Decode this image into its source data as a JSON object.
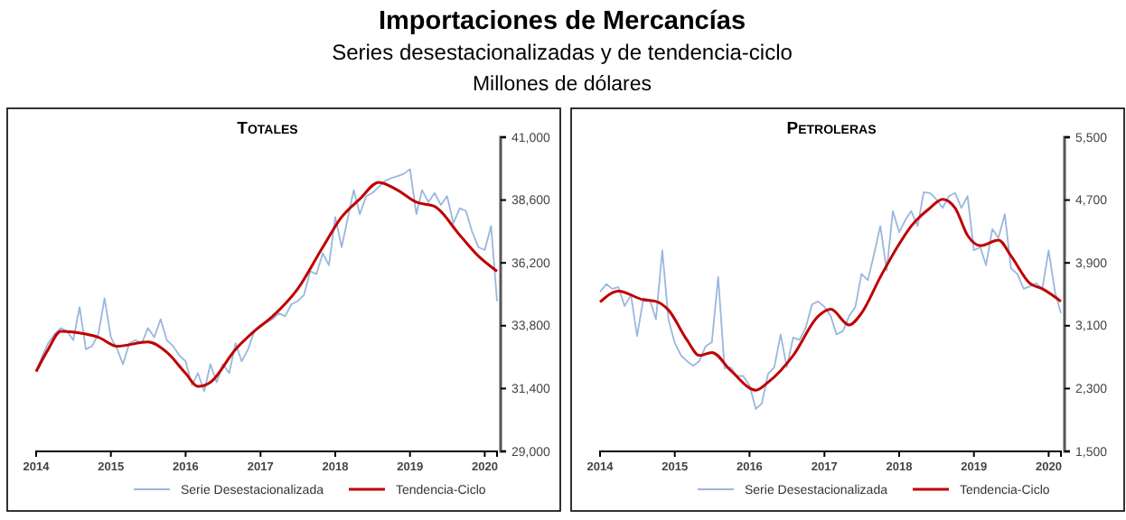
{
  "chart_data": [
    {
      "type": "line",
      "title": "Totales",
      "annotations": [
        "Importaciones de Mercancías",
        "Series desestacionalizadas y de tendencia-ciclo",
        "Millones de dólares"
      ],
      "x": [
        "2014-01",
        "2014-02",
        "2014-03",
        "2014-04",
        "2014-05",
        "2014-06",
        "2014-07",
        "2014-08",
        "2014-09",
        "2014-10",
        "2014-11",
        "2014-12",
        "2015-01",
        "2015-02",
        "2015-03",
        "2015-04",
        "2015-05",
        "2015-06",
        "2015-07",
        "2015-08",
        "2015-09",
        "2015-10",
        "2015-11",
        "2015-12",
        "2016-01",
        "2016-02",
        "2016-03",
        "2016-04",
        "2016-05",
        "2016-06",
        "2016-07",
        "2016-08",
        "2016-09",
        "2016-10",
        "2016-11",
        "2016-12",
        "2017-01",
        "2017-02",
        "2017-03",
        "2017-04",
        "2017-05",
        "2017-06",
        "2017-07",
        "2017-08",
        "2017-09",
        "2017-10",
        "2017-11",
        "2017-12",
        "2018-01",
        "2018-02",
        "2018-03",
        "2018-04",
        "2018-05",
        "2018-06",
        "2018-07",
        "2018-08",
        "2018-09",
        "2018-10",
        "2018-11",
        "2018-12",
        "2019-01",
        "2019-02",
        "2019-03",
        "2019-04",
        "2019-05",
        "2019-06",
        "2019-07",
        "2019-08",
        "2019-09",
        "2019-10",
        "2019-11",
        "2019-12",
        "2020-01",
        "2020-02",
        "2020-03"
      ],
      "series": [
        {
          "name": "Serie Desestacionalizada",
          "color": "#9ab7dd",
          "values": [
            32050,
            32670,
            33130,
            33480,
            33710,
            33590,
            33250,
            34510,
            32900,
            33020,
            33480,
            34850,
            33360,
            32900,
            32330,
            33130,
            33250,
            33130,
            33710,
            33360,
            34050,
            33250,
            33020,
            32670,
            32440,
            31530,
            31990,
            31300,
            32330,
            31640,
            32330,
            31990,
            33130,
            32440,
            32900,
            33590,
            33820,
            33930,
            34050,
            34280,
            34160,
            34620,
            34740,
            34970,
            35880,
            35770,
            36570,
            36110,
            37950,
            36800,
            37830,
            38980,
            38060,
            38750,
            38870,
            39100,
            39330,
            39440,
            39510,
            39600,
            39780,
            38060,
            38980,
            38520,
            38870,
            38410,
            38750,
            37720,
            38290,
            38180,
            37380,
            36800,
            36690,
            37610,
            34740
          ]
        },
        {
          "name": "Tendencia-Ciclo",
          "color": "#c00000",
          "x": [
            "2014-01",
            "2014-03",
            "2014-05",
            "2014-09",
            "2014-11",
            "2015-02",
            "2015-07",
            "2015-10",
            "2016-01",
            "2016-03",
            "2016-05",
            "2016-09",
            "2016-12",
            "2017-03",
            "2017-07",
            "2017-11",
            "2018-02",
            "2018-05",
            "2018-08",
            "2018-11",
            "2019-02",
            "2019-05",
            "2019-09",
            "2019-12",
            "2020-03"
          ],
          "values": [
            32050,
            32900,
            33590,
            33480,
            33360,
            33020,
            33180,
            32790,
            31980,
            31480,
            31640,
            32900,
            33590,
            34160,
            35200,
            36800,
            37950,
            38640,
            39280,
            38980,
            38520,
            38360,
            37260,
            36460,
            35880
          ]
        }
      ],
      "xlim": [
        "2014-01",
        "2020-03"
      ],
      "xticks": [
        {
          "value": "2014-01",
          "label": "2014"
        },
        {
          "value": "2015-01",
          "label": "2015"
        },
        {
          "value": "2016-01",
          "label": "2016"
        },
        {
          "value": "2017-01",
          "label": "2017"
        },
        {
          "value": "2018-01",
          "label": "2018"
        },
        {
          "value": "2019-01",
          "label": "2019"
        },
        {
          "value": "2020-01",
          "label": "2020"
        }
      ],
      "ylim": [
        29000,
        41000
      ],
      "yticks": [
        {
          "value": 29000,
          "label": "29,000"
        },
        {
          "value": 31400,
          "label": "31,400"
        },
        {
          "value": 33800,
          "label": "33,800"
        },
        {
          "value": 36200,
          "label": "36,200"
        },
        {
          "value": 38600,
          "label": "38,600"
        },
        {
          "value": 41000,
          "label": "41,000"
        }
      ],
      "legend": "bottom",
      "marker": "none",
      "line_style": "solid"
    },
    {
      "type": "line",
      "title": "Petroleras",
      "x": [
        "2014-01",
        "2014-02",
        "2014-03",
        "2014-04",
        "2014-05",
        "2014-06",
        "2014-07",
        "2014-08",
        "2014-09",
        "2014-10",
        "2014-11",
        "2014-12",
        "2015-01",
        "2015-02",
        "2015-03",
        "2015-04",
        "2015-05",
        "2015-06",
        "2015-07",
        "2015-08",
        "2015-09",
        "2015-10",
        "2015-11",
        "2015-12",
        "2016-01",
        "2016-02",
        "2016-03",
        "2016-04",
        "2016-05",
        "2016-06",
        "2016-07",
        "2016-08",
        "2016-09",
        "2016-10",
        "2016-11",
        "2016-12",
        "2017-01",
        "2017-02",
        "2017-03",
        "2017-04",
        "2017-05",
        "2017-06",
        "2017-07",
        "2017-08",
        "2017-09",
        "2017-10",
        "2017-11",
        "2017-12",
        "2018-01",
        "2018-02",
        "2018-03",
        "2018-04",
        "2018-05",
        "2018-06",
        "2018-07",
        "2018-08",
        "2018-09",
        "2018-10",
        "2018-11",
        "2018-12",
        "2019-01",
        "2019-02",
        "2019-03",
        "2019-04",
        "2019-05",
        "2019-06",
        "2019-07",
        "2019-08",
        "2019-09",
        "2019-10",
        "2019-11",
        "2019-12",
        "2020-01",
        "2020-02",
        "2020-03"
      ],
      "series": [
        {
          "name": "Serie Desestacionalizada",
          "color": "#9ab7dd",
          "values": [
            3530,
            3630,
            3570,
            3590,
            3350,
            3490,
            2970,
            3450,
            3430,
            3180,
            4060,
            3180,
            2880,
            2720,
            2650,
            2590,
            2650,
            2840,
            2890,
            3720,
            2560,
            2570,
            2460,
            2460,
            2340,
            2040,
            2110,
            2490,
            2570,
            2990,
            2570,
            2950,
            2920,
            3070,
            3370,
            3410,
            3340,
            3220,
            2990,
            3030,
            3220,
            3340,
            3760,
            3680,
            4020,
            4370,
            3800,
            4560,
            4290,
            4450,
            4560,
            4370,
            4800,
            4790,
            4710,
            4600,
            4750,
            4790,
            4600,
            4750,
            4060,
            4100,
            3870,
            4330,
            4220,
            4520,
            3830,
            3760,
            3570,
            3600,
            3640,
            3570,
            4060,
            3530,
            3260
          ]
        },
        {
          "name": "Tendencia-Ciclo",
          "color": "#c00000",
          "x": [
            "2014-01",
            "2014-04",
            "2014-08",
            "2014-10",
            "2014-12",
            "2015-03",
            "2015-05",
            "2015-07",
            "2015-10",
            "2016-02",
            "2016-04",
            "2016-08",
            "2016-12",
            "2017-02",
            "2017-05",
            "2017-07",
            "2017-10",
            "2018-01",
            "2018-03",
            "2018-06",
            "2018-08",
            "2018-10",
            "2018-12",
            "2019-02",
            "2019-05",
            "2019-07",
            "2019-10",
            "2019-12",
            "2020-03"
          ],
          "values": [
            3400,
            3540,
            3430,
            3410,
            3300,
            2920,
            2720,
            2760,
            2530,
            2280,
            2380,
            2720,
            3220,
            3310,
            3110,
            3260,
            3720,
            4140,
            4370,
            4600,
            4710,
            4600,
            4250,
            4120,
            4190,
            3990,
            3640,
            3570,
            3410
          ]
        }
      ],
      "xlim": [
        "2014-01",
        "2020-03"
      ],
      "xticks": [
        {
          "value": "2014-01",
          "label": "2014"
        },
        {
          "value": "2015-01",
          "label": "2015"
        },
        {
          "value": "2016-01",
          "label": "2016"
        },
        {
          "value": "2017-01",
          "label": "2017"
        },
        {
          "value": "2018-01",
          "label": "2018"
        },
        {
          "value": "2019-01",
          "label": "2019"
        },
        {
          "value": "2020-01",
          "label": "2020"
        }
      ],
      "ylim": [
        1500,
        5500
      ],
      "yticks": [
        {
          "value": 1500,
          "label": "1,500"
        },
        {
          "value": 2300,
          "label": "2,300"
        },
        {
          "value": 3100,
          "label": "3,100"
        },
        {
          "value": 3900,
          "label": "3,900"
        },
        {
          "value": 4700,
          "label": "4,700"
        },
        {
          "value": 5500,
          "label": "5,500"
        }
      ],
      "legend": "bottom",
      "marker": "none",
      "line_style": "solid"
    }
  ]
}
